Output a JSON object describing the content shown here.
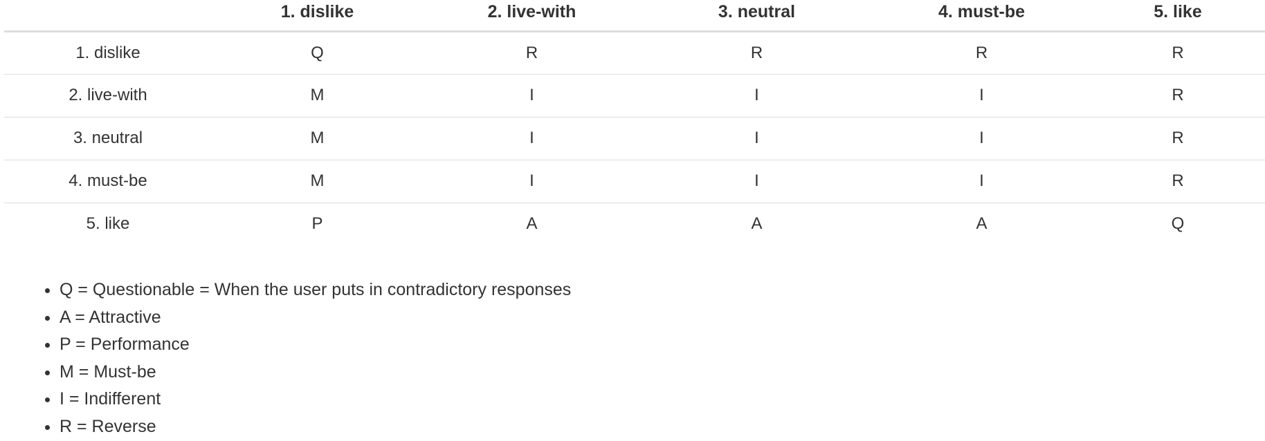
{
  "table": {
    "columns": [
      "",
      "1. dislike",
      "2. live-with",
      "3. neutral",
      "4. must-be",
      "5. like"
    ],
    "rows": [
      {
        "label": "1. dislike",
        "cells": [
          "Q",
          "R",
          "R",
          "R",
          "R"
        ]
      },
      {
        "label": "2. live-with",
        "cells": [
          "M",
          "I",
          "I",
          "I",
          "R"
        ]
      },
      {
        "label": "3. neutral",
        "cells": [
          "M",
          "I",
          "I",
          "I",
          "R"
        ]
      },
      {
        "label": "4. must-be",
        "cells": [
          "M",
          "I",
          "I",
          "I",
          "R"
        ]
      },
      {
        "label": "5. like",
        "cells": [
          "P",
          "A",
          "A",
          "A",
          "Q"
        ]
      }
    ]
  },
  "legend": [
    "Q = Questionable = When the user puts in contradictory responses",
    "A = Attractive",
    "P = Performance",
    "M = Must-be",
    "I = Indifferent",
    "R = Reverse"
  ]
}
